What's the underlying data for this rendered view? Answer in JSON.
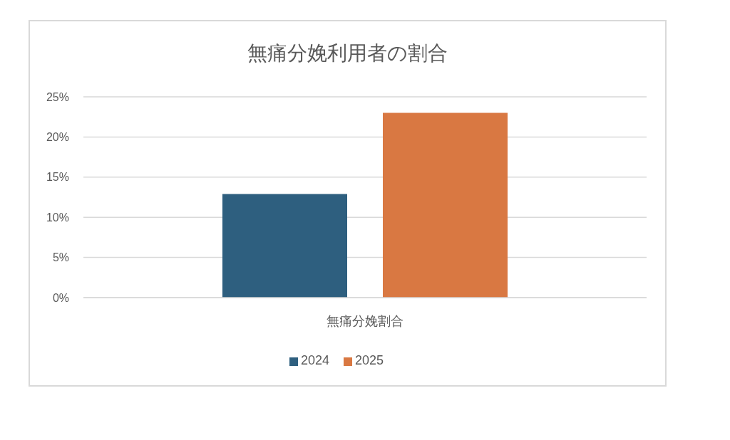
{
  "chart_data": {
    "type": "bar",
    "title": "無痛分娩利用者の割合",
    "categories": [
      "無痛分娩割合"
    ],
    "series": [
      {
        "name": "2024",
        "color": "#2e5f7f",
        "values": [
          12.9
        ]
      },
      {
        "name": "2025",
        "color": "#d97842",
        "values": [
          23.0
        ]
      }
    ],
    "ylim": [
      0,
      25
    ],
    "yticks": [
      {
        "value": 0,
        "label": "0%"
      },
      {
        "value": 5,
        "label": "5%"
      },
      {
        "value": 10,
        "label": "10%"
      },
      {
        "value": 15,
        "label": "15%"
      },
      {
        "value": 20,
        "label": "20%"
      },
      {
        "value": 25,
        "label": "25%"
      }
    ],
    "grid": "y",
    "legend": "bottom"
  }
}
